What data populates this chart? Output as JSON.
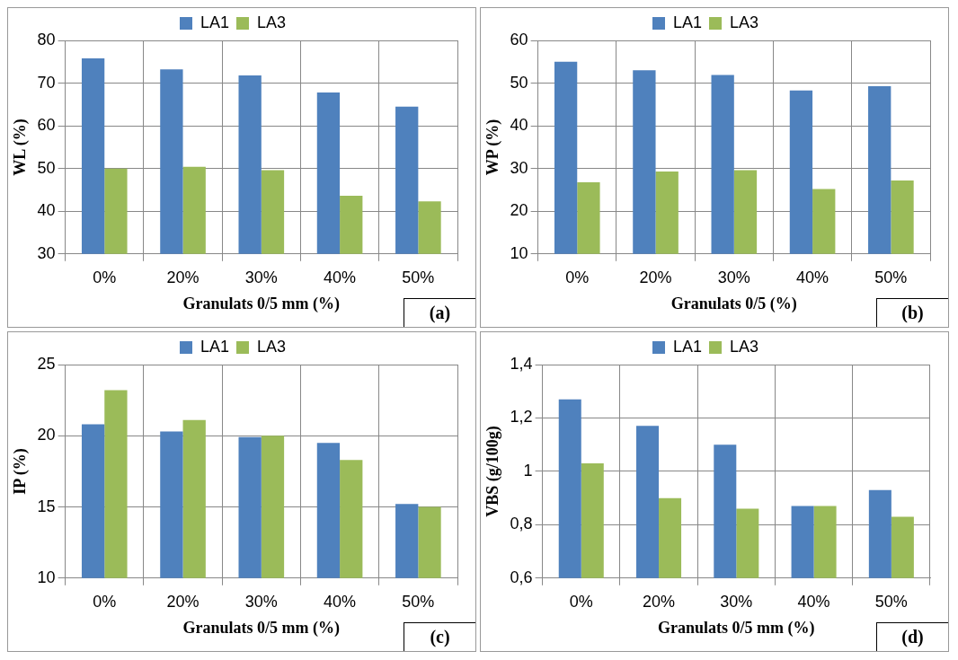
{
  "chart_data": [
    {
      "type": "bar",
      "xlabel": "Granulats 0/5 mm (%)",
      "ylabel": "WL (%)",
      "categories": [
        "0%",
        "20%",
        "30%",
        "40%",
        "50%"
      ],
      "series": [
        {
          "name": "LA1",
          "color": "#4f81bd",
          "values": [
            75.8,
            73.2,
            71.8,
            67.8,
            64.5
          ]
        },
        {
          "name": "LA3",
          "color": "#9bbb59",
          "values": [
            50,
            50.4,
            49.6,
            43.6,
            42.3
          ]
        }
      ],
      "ylim": [
        30,
        80
      ],
      "yticks": [
        30,
        40,
        50,
        60,
        70,
        80
      ],
      "grid": true,
      "legend": "top",
      "annotations": [
        "(a)"
      ]
    },
    {
      "type": "bar",
      "xlabel": "Granulats 0/5 (%)",
      "ylabel": "WP (%)",
      "categories": [
        "0%",
        "20%",
        "30%",
        "40%",
        "50%"
      ],
      "series": [
        {
          "name": "LA1",
          "color": "#4f81bd",
          "values": [
            55,
            53,
            51.9,
            48.3,
            49.3
          ]
        },
        {
          "name": "LA3",
          "color": "#9bbb59",
          "values": [
            26.8,
            29.3,
            29.6,
            25.2,
            27.2
          ]
        }
      ],
      "ylim": [
        10,
        60
      ],
      "yticks": [
        10,
        20,
        30,
        40,
        50,
        60
      ],
      "grid": true,
      "legend": "top",
      "annotations": [
        "(b)"
      ]
    },
    {
      "type": "bar",
      "xlabel": "Granulats 0/5 mm (%)",
      "ylabel": "IP (%)",
      "categories": [
        "0%",
        "20%",
        "30%",
        "40%",
        "50%"
      ],
      "series": [
        {
          "name": "LA1",
          "color": "#4f81bd",
          "values": [
            20.8,
            20.3,
            19.9,
            19.5,
            15.2
          ]
        },
        {
          "name": "LA3",
          "color": "#9bbb59",
          "values": [
            23.2,
            21.1,
            20,
            18.3,
            15
          ]
        }
      ],
      "ylim": [
        10,
        25
      ],
      "yticks": [
        10,
        15,
        20,
        25
      ],
      "grid": true,
      "legend": "top",
      "annotations": [
        "(c)"
      ]
    },
    {
      "type": "bar",
      "xlabel": "Granulats 0/5 mm (%)",
      "ylabel": "VBS (g/100g)",
      "categories": [
        "0%",
        "20%",
        "30%",
        "40%",
        "50%"
      ],
      "series": [
        {
          "name": "LA1",
          "color": "#4f81bd",
          "values": [
            1.27,
            1.17,
            1.1,
            0.87,
            0.93
          ]
        },
        {
          "name": "LA3",
          "color": "#9bbb59",
          "values": [
            1.03,
            0.9,
            0.86,
            0.87,
            0.83
          ]
        }
      ],
      "ylim": [
        0.6,
        1.4
      ],
      "yticks": [
        {
          "value": 0.6,
          "label": "0,6"
        },
        {
          "value": 0.8,
          "label": "0,8"
        },
        1,
        {
          "value": 1.2,
          "label": "1,2"
        },
        {
          "value": 1.4,
          "label": "1,4"
        }
      ],
      "grid": true,
      "legend": "top",
      "annotations": [
        "(d)"
      ]
    }
  ]
}
